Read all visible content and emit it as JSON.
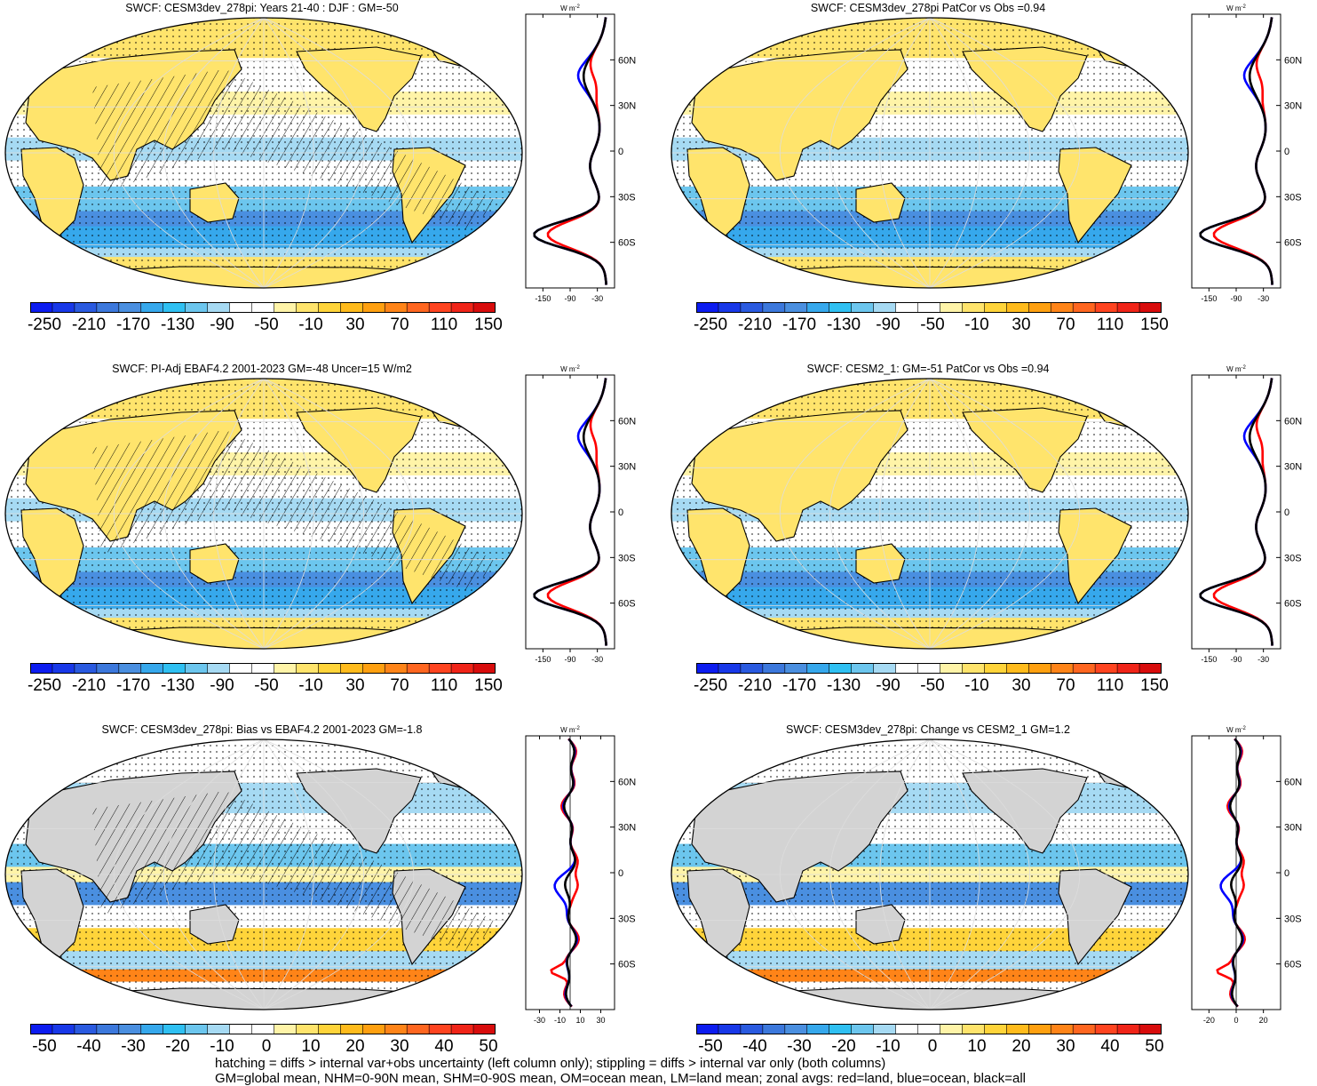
{
  "colors": {
    "land": "#d3d3d3",
    "coast": "#000000",
    "grid": "#dddddd",
    "zonal_land": "#ff0000",
    "zonal_ocean": "#0000ff",
    "zonal_all": "#000000",
    "palette": [
      "#0c1cf0",
      "#1838e8",
      "#2a5ae0",
      "#3c78dc",
      "#4a8fe0",
      "#36a8ec",
      "#2fc0f2",
      "#6cc6ee",
      "#a6daf3",
      "#ffffff",
      "#ffffff",
      "#fff4a8",
      "#ffe46c",
      "#ffd43a",
      "#ffbb1c",
      "#ffa010",
      "#ff8418",
      "#ff6620",
      "#ff4420",
      "#f02418",
      "#d80c0c"
    ]
  },
  "panels": [
    {
      "id": "mean",
      "title": "SWCF: CESM3dev_278pi: Years 21-40 : DJF : GM=-50",
      "colorbar_labels": [
        "-250",
        "-210",
        "-170",
        "-130",
        "-90",
        "-50",
        "-10",
        "30",
        "70",
        "110",
        "150"
      ],
      "zonal_unit": "W m",
      "zonal_unit_sup": "-2",
      "zonal_x_ticks": [
        "-150",
        "-90",
        "-30"
      ],
      "zonal_y_ticks": [
        "60N",
        "30N",
        "0",
        "30S",
        "60S"
      ]
    },
    {
      "id": "patcor",
      "title": "SWCF: CESM3dev_278pi PatCor vs Obs =0.94",
      "colorbar_labels": [
        "-250",
        "-210",
        "-170",
        "-130",
        "-90",
        "-50",
        "-10",
        "30",
        "70",
        "110",
        "150"
      ],
      "zonal_unit": "W m",
      "zonal_unit_sup": "-2",
      "zonal_x_ticks": [
        "-150",
        "-90",
        "-30"
      ],
      "zonal_y_ticks": [
        "60N",
        "30N",
        "0",
        "30S",
        "60S"
      ]
    },
    {
      "id": "obs",
      "title": "SWCF: PI-Adj EBAF4.2 2001-2023 GM=-48 Uncer=15 W/m2",
      "colorbar_labels": [
        "-250",
        "-210",
        "-170",
        "-130",
        "-90",
        "-50",
        "-10",
        "30",
        "70",
        "110",
        "150"
      ],
      "zonal_unit": "W m",
      "zonal_unit_sup": "-2",
      "zonal_x_ticks": [
        "-150",
        "-90",
        "-30"
      ],
      "zonal_y_ticks": [
        "60N",
        "30N",
        "0",
        "30S",
        "60S"
      ]
    },
    {
      "id": "cesm2",
      "title": "SWCF: CESM2_1: GM=-51 PatCor vs Obs =0.94",
      "colorbar_labels": [
        "-250",
        "-210",
        "-170",
        "-130",
        "-90",
        "-50",
        "-10",
        "30",
        "70",
        "110",
        "150"
      ],
      "zonal_unit": "W m",
      "zonal_unit_sup": "-2",
      "zonal_x_ticks": [
        "-150",
        "-90",
        "-30"
      ],
      "zonal_y_ticks": [
        "60N",
        "30N",
        "0",
        "30S",
        "60S"
      ]
    },
    {
      "id": "bias",
      "title": "SWCF: CESM3dev_278pi: Bias vs EBAF4.2 2001-2023 GM=-1.8",
      "colorbar_labels": [
        "-50",
        "-40",
        "-30",
        "-20",
        "-10",
        "0",
        "10",
        "20",
        "30",
        "40",
        "50"
      ],
      "zonal_unit": "W m",
      "zonal_unit_sup": "-2",
      "zonal_x_ticks": [
        "-30",
        "-10",
        "10",
        "30"
      ],
      "zonal_y_ticks": [
        "60N",
        "30N",
        "0",
        "30S",
        "60S"
      ]
    },
    {
      "id": "change",
      "title": "SWCF: CESM3dev_278pi: Change vs CESM2_1 GM=1.2",
      "colorbar_labels": [
        "-50",
        "-40",
        "-30",
        "-20",
        "-10",
        "0",
        "10",
        "20",
        "30",
        "40",
        "50"
      ],
      "zonal_unit": "W m",
      "zonal_unit_sup": "-2",
      "zonal_x_ticks": [
        "-20",
        "0",
        "20"
      ],
      "zonal_y_ticks": [
        "60N",
        "30N",
        "0",
        "30S",
        "60S"
      ]
    }
  ],
  "footer": {
    "line1": "hatching = diffs > internal var+obs uncertainty (left column only); stippling = diffs > internal var only (both columns)",
    "line2": "GM=global mean, NHM=0-90N mean, SHM=0-90S mean, OM=ocean mean, LM=land mean; zonal avgs: red=land, blue=ocean, black=all"
  }
}
